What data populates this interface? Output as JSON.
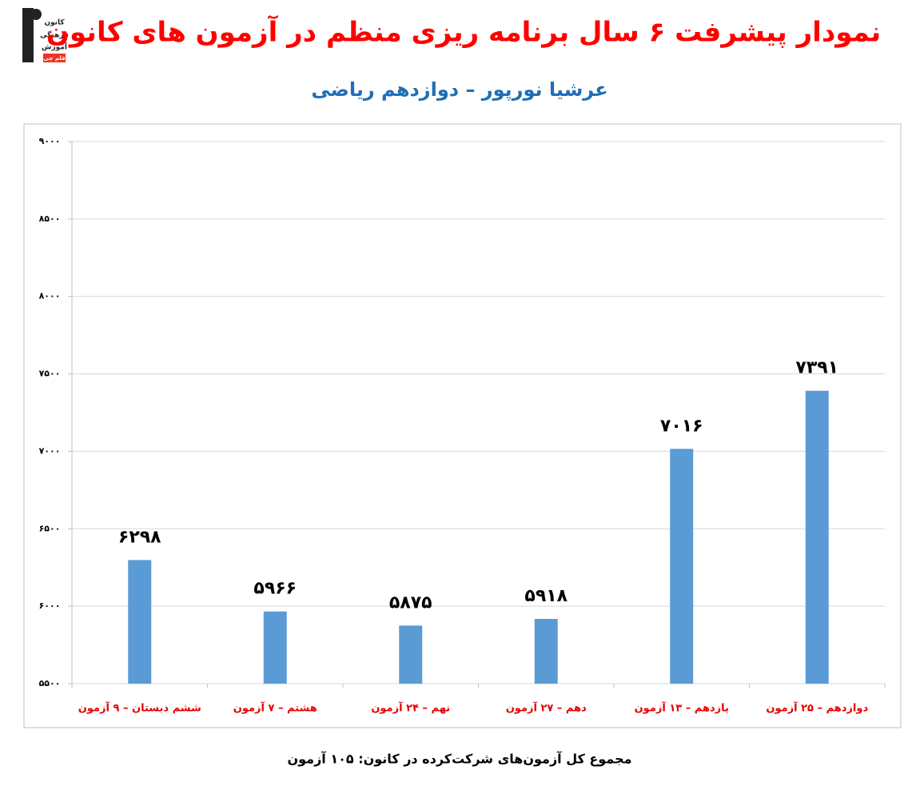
{
  "logo": {
    "lines": [
      "کانون",
      "فرهنگی",
      "آموزش",
      "قلم چی"
    ]
  },
  "chart_data": {
    "type": "bar",
    "title": "نمودار پیشرفت ۶ سال برنامه ریزی منظم در آزمون های کانون",
    "subtitle": "عرشیا نورپور – دوازدهم ریاضی",
    "footnote": "مجموع کل آزمون‌های شرکت‌کرده در کانون: ۱۰۵ آزمون",
    "categories": [
      "ششم دبستان – ۹ آزمون",
      "هشتم – ۷ آزمون",
      "نهم – ۲۴ آزمون",
      "دهم – ۲۷ آزمون",
      "یازدهم – ۱۳ آزمون",
      "دوازدهم – ۲۵ آزمون"
    ],
    "values": [
      6298,
      5966,
      5875,
      5918,
      7016,
      7391
    ],
    "value_labels": [
      "۶۲۹۸",
      "۵۹۶۶",
      "۵۸۷۵",
      "۵۹۱۸",
      "۷۰۱۶",
      "۷۳۹۱"
    ],
    "color": "#5b9bd5",
    "ylim": [
      5500,
      9000
    ],
    "yticks": [
      {
        "value": 5500,
        "label": "۵۵۰۰"
      },
      {
        "value": 6000,
        "label": "۶۰۰۰"
      },
      {
        "value": 6500,
        "label": "۶۵۰۰"
      },
      {
        "value": 7000,
        "label": "۷۰۰۰"
      },
      {
        "value": 7500,
        "label": "۷۵۰۰"
      },
      {
        "value": 8000,
        "label": "۸۰۰۰"
      },
      {
        "value": 8500,
        "label": "۸۵۰۰"
      },
      {
        "value": 9000,
        "label": "۹۰۰۰"
      }
    ],
    "grid": true
  }
}
